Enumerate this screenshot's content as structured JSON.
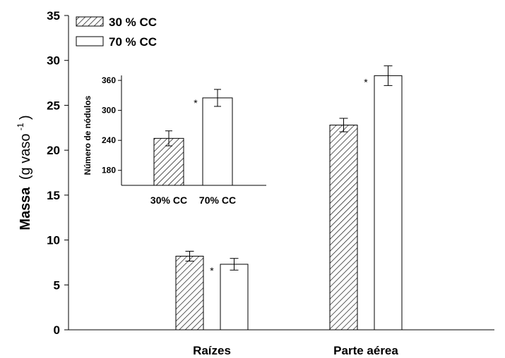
{
  "chart_data": [
    {
      "type": "bar",
      "categories": [
        "Raízes",
        "Parte aérea"
      ],
      "series": [
        {
          "name": "30 % CC",
          "values": [
            8.2,
            22.8
          ],
          "errors": [
            0.55,
            0.75
          ],
          "pattern": "hatched"
        },
        {
          "name": "70 % CC",
          "values": [
            7.3,
            28.3
          ],
          "errors": [
            0.65,
            1.1
          ],
          "pattern": "white"
        }
      ],
      "significance_marker": "*",
      "ylabel_main": "Massa",
      "ylabel_paren_open": "(g vaso",
      "ylabel_sup": "-1",
      "ylabel_paren_close": ")",
      "ylim": [
        0,
        35
      ],
      "yticks": [
        "0",
        "5",
        "10",
        "15",
        "20",
        "25",
        "30",
        "35"
      ],
      "legend_position": "top-left",
      "grid": false
    },
    {
      "type": "bar",
      "categories": [
        "30% CC",
        "70% CC"
      ],
      "values": [
        244,
        325
      ],
      "errors": [
        15,
        17
      ],
      "patterns": [
        "hatched",
        "white"
      ],
      "significance_marker": "*",
      "ylabel": "Número de nódulos",
      "ylim": [
        150,
        370
      ],
      "yticks": [
        "180",
        "240",
        "300",
        "360"
      ],
      "grid": false
    }
  ]
}
